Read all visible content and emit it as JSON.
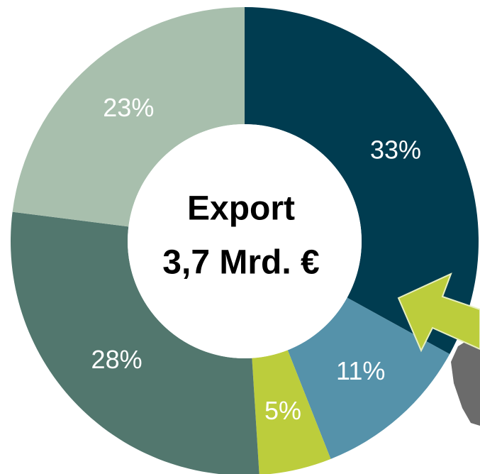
{
  "chart_data": {
    "type": "donut",
    "title": "Export",
    "subtitle": "3,7 Mrd. €",
    "values": [
      33,
      11,
      5,
      28,
      23
    ],
    "value_labels": [
      "33%",
      "11%",
      "5%",
      "28%",
      "23%"
    ],
    "colors": [
      "#003c50",
      "#5592aa",
      "#bccd3c",
      "#52776e",
      "#a8bfad"
    ]
  }
}
